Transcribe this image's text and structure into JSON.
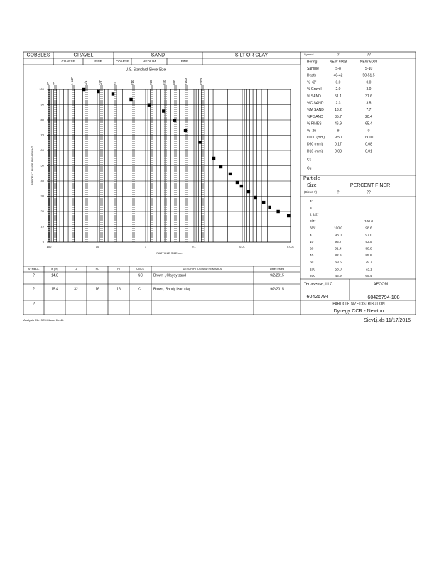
{
  "header": {
    "classes": [
      "COBBLES",
      "GRAVEL",
      "SAND",
      "SILT OR CLAY"
    ],
    "subclasses": [
      "COARSE",
      "FINE",
      "COARSE",
      "MEDIUM",
      "FINE"
    ]
  },
  "chart_data": {
    "type": "scatter",
    "subtitle": "U.S. Standard Sieve Size",
    "sieve_labels": [
      "6\"",
      "3\"",
      "1 1/2\"",
      "3/4\"",
      "3/8\"",
      "#4",
      "#10",
      "#20",
      "#40",
      "#60",
      "#100",
      "#200"
    ],
    "x_label": "PARTICLE SIZE-mm",
    "y_label": "PERCENT FINER BY WEIGHT",
    "log_x": true,
    "xlim": [
      100,
      0.001
    ],
    "xticks": [
      100,
      10,
      1,
      0.1,
      0.01,
      0.001
    ],
    "ylim": [
      0,
      100
    ],
    "yticks": [
      0,
      10,
      20,
      30,
      40,
      50,
      60,
      70,
      80,
      90,
      100
    ],
    "grid": true,
    "series": [
      {
        "color": "#000000",
        "x": [
          19,
          9.5,
          4.75,
          2.0,
          0.85,
          0.425,
          0.25,
          0.15,
          0.075,
          0.0387,
          0.0276,
          0.0178,
          0.0127,
          0.0104,
          0.0074,
          0.0053,
          0.0036,
          0.0027,
          0.0018,
          0.0011
        ],
        "values": [
          100,
          98.6,
          97.0,
          93.5,
          89.9,
          85.8,
          79.7,
          73.1,
          65.4,
          54.9,
          49.3,
          44.7,
          39.1,
          36.7,
          33.0,
          29.3,
          26.0,
          22.8,
          20.0,
          17.2
        ]
      }
    ]
  },
  "test_table": {
    "headers": [
      "SYMBOL",
      "w (%)",
      "LL",
      "PL",
      "PI",
      "USCS",
      "DESCRIPTION AND REMARKS",
      "Date Tested"
    ],
    "rows": [
      [
        "?",
        "14.8",
        null,
        null,
        null,
        "SC",
        "Brown , Clayey sand",
        "9/2/2015"
      ],
      [
        "?",
        "15.4",
        "32",
        "16",
        "16",
        "CL",
        "Brown, Sandy lean clay",
        "9/2/2015"
      ],
      [
        "?",
        null,
        null,
        null,
        null,
        null,
        null,
        null
      ]
    ]
  },
  "properties": {
    "rows": [
      [
        "Symbol",
        "?",
        "??"
      ],
      [
        "Boring",
        "NEW-6008",
        "NEW-6008"
      ],
      [
        "Sample",
        "S-8",
        "S-10"
      ],
      [
        "Depth",
        "40-42",
        "50-51.5"
      ],
      [
        "% +3\"",
        "0.0",
        "0.0"
      ],
      [
        "% Gravel",
        "2.0",
        "3.0"
      ],
      [
        "% SAND",
        "51.1",
        "31.6"
      ],
      [
        "%C SAND",
        "2.3",
        "3.5"
      ],
      [
        "%M SAND",
        "13.2",
        "7.7"
      ],
      [
        "%F SAND",
        "35.7",
        "20.4"
      ],
      [
        "% FINES",
        "46.9",
        "65.4"
      ],
      [
        "% -2u",
        "9",
        "0"
      ],
      [
        "D100 (mm)",
        "9.50",
        "19.00"
      ],
      [
        "D60 (mm)",
        "0.17",
        "0.08"
      ],
      [
        "D10 (mm)",
        "0.03",
        "0.01"
      ],
      [
        "Cc",
        null,
        null
      ],
      [
        "Cu",
        null,
        null
      ]
    ]
  },
  "sieve_table": {
    "title_1": "Particle",
    "title_2": "Size",
    "heading": "PERCENT FINER",
    "sieve_header": "(Sieve #)",
    "symbols": [
      "?",
      "??"
    ],
    "rows": [
      [
        "4\"",
        null,
        null
      ],
      [
        "3\"",
        null,
        null
      ],
      [
        "1 1/2\"",
        null,
        null
      ],
      [
        "3/4\"",
        null,
        "100.0"
      ],
      [
        "3/8\"",
        "100.0",
        "98.6"
      ],
      [
        "4",
        "98.0",
        "97.0"
      ],
      [
        "10",
        "95.7",
        "93.5"
      ],
      [
        "20",
        "91.4",
        "89.9"
      ],
      [
        "40",
        "82.5",
        "85.8"
      ],
      [
        "60",
        "69.5",
        "79.7"
      ],
      [
        "100",
        "58.0",
        "73.1"
      ],
      [
        "200",
        "46.9",
        "65.4"
      ]
    ]
  },
  "title_block": {
    "company": "Terrasense, LLC",
    "client": "AECOM",
    "project_no": "T60426794",
    "client_no": "60426794-108",
    "title": "PARTICLE SIZE DISTRIBUTION",
    "project": "Dynegy CCR - Newton"
  },
  "footer": {
    "analysis_file": "Analysis File: 3SV-Masterfile-4b",
    "file": "Siev1j.xls 11/17/2015"
  }
}
